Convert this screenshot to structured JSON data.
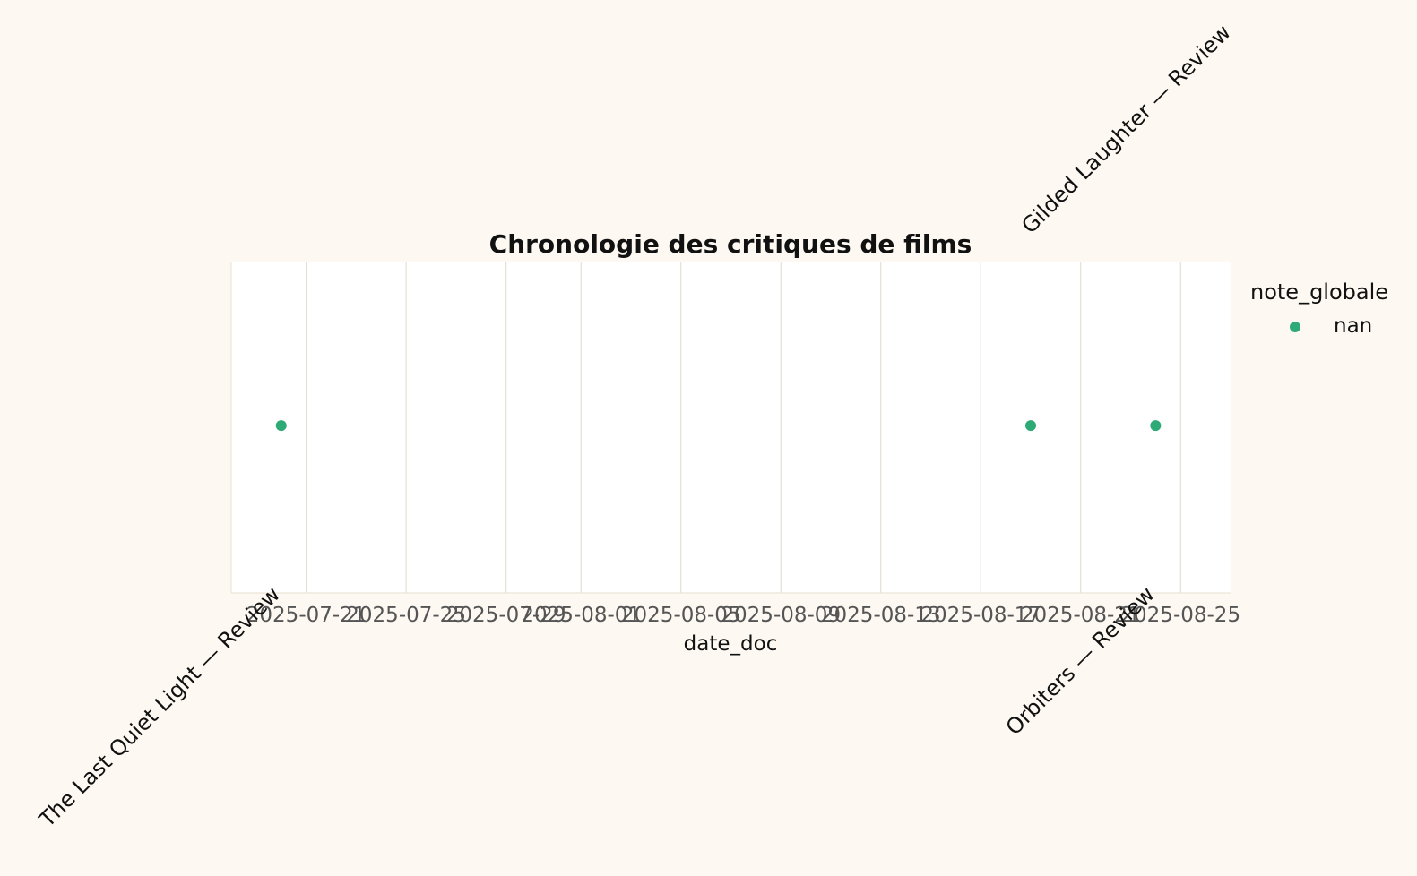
{
  "chart_data": {
    "type": "scatter",
    "title": "Chronologie des critiques de films",
    "xlabel": "date_doc",
    "ylabel": "",
    "x_ticks": [
      "2025-07-21",
      "2025-07-25",
      "2025-07-29",
      "2025-08-01",
      "2025-08-05",
      "2025-08-09",
      "2025-08-13",
      "2025-08-17",
      "2025-08-21",
      "2025-08-25"
    ],
    "xlim": [
      "2025-07-18",
      "2025-08-27"
    ],
    "grid": "vertical",
    "legend": {
      "title": "note_globale",
      "placement": "top-right, outside"
    },
    "series": [
      {
        "name": "nan",
        "color": "#2eaa77",
        "points": [
          {
            "x": "2025-07-20",
            "y": 0,
            "label": "The Last Quiet Light — Review",
            "label_side": "below"
          },
          {
            "x": "2025-08-19",
            "y": 0,
            "label": "Gilded Laughter — Review",
            "label_side": "above"
          },
          {
            "x": "2025-08-24",
            "y": 0,
            "label": "Orbiters — Review",
            "label_side": "below"
          }
        ]
      }
    ]
  }
}
